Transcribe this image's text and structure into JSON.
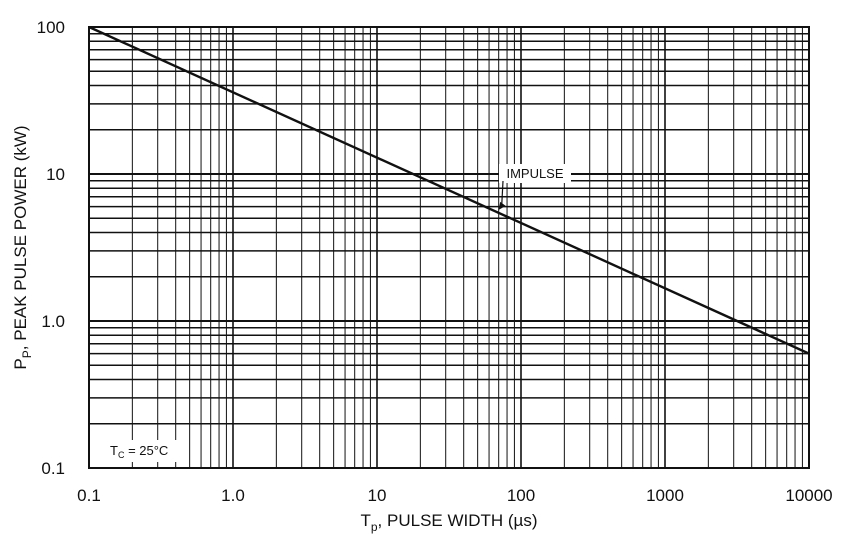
{
  "chart_data": {
    "type": "line",
    "x_scale": "log",
    "y_scale": "log",
    "xlim": [
      0.1,
      10000
    ],
    "ylim": [
      0.1,
      100
    ],
    "grid": true,
    "xlabel": {
      "main": "T",
      "sub": "p",
      "rest": ", PULSE WIDTH (µs)"
    },
    "ylabel": {
      "main": "P",
      "sub": "P",
      "rest": ", PEAK PULSE POWER (kW)"
    },
    "x_tick_labels": [
      {
        "value": 0.1,
        "label": "0.1"
      },
      {
        "value": 1,
        "label": "1.0"
      },
      {
        "value": 10,
        "label": "10"
      },
      {
        "value": 100,
        "label": "100"
      },
      {
        "value": 1000,
        "label": "1000"
      },
      {
        "value": 10000,
        "label": "10000"
      }
    ],
    "y_tick_labels": [
      {
        "value": 0.1,
        "label": "0.1"
      },
      {
        "value": 1,
        "label": "1.0"
      },
      {
        "value": 10,
        "label": "10"
      },
      {
        "value": 100,
        "label": "100"
      }
    ],
    "series": [
      {
        "name": "IMPULSE",
        "x": [
          0.1,
          10000
        ],
        "y": [
          100,
          0.6
        ]
      }
    ],
    "annotations": [
      {
        "text": "IMPULSE",
        "x": 70,
        "y": 5.7
      },
      {
        "text_main": "T",
        "text_sub": "C",
        "text_rest": " = 25°C"
      }
    ],
    "line_color": "#111111",
    "grid_color": "#111111"
  }
}
